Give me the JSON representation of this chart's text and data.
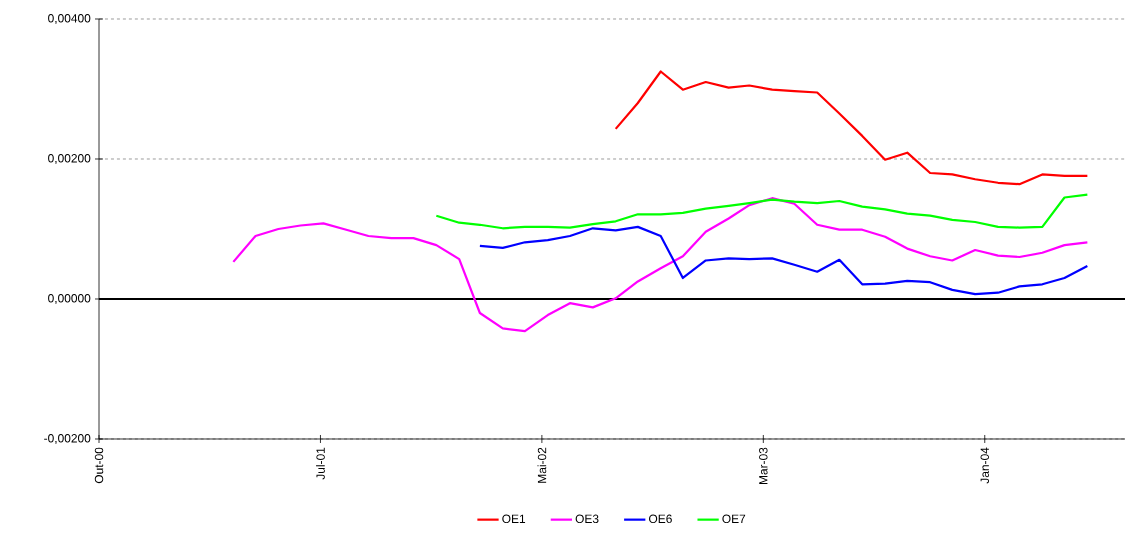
{
  "chart_data": {
    "type": "line",
    "x": [
      "2001-04",
      "2001-05",
      "2001-06",
      "2001-07",
      "2001-08",
      "2001-09",
      "2001-10",
      "2001-11",
      "2001-12",
      "2002-01",
      "2002-02",
      "2002-03",
      "2002-04",
      "2002-05",
      "2002-06",
      "2002-07",
      "2002-08",
      "2002-09",
      "2002-10",
      "2002-11",
      "2002-12",
      "2003-01",
      "2003-02",
      "2003-03",
      "2003-04",
      "2003-05",
      "2003-06",
      "2003-07",
      "2003-08",
      "2003-09",
      "2003-10",
      "2003-11",
      "2003-12",
      "2004-01",
      "2004-02",
      "2004-03",
      "2004-04",
      "2004-05",
      "2004-06"
    ],
    "series": [
      {
        "name": "OE1",
        "color": "#ff0000",
        "values": [
          null,
          null,
          null,
          null,
          null,
          null,
          null,
          null,
          null,
          null,
          null,
          null,
          null,
          null,
          null,
          null,
          null,
          0.00243,
          0.0028,
          0.00325,
          0.00299,
          0.0031,
          0.00302,
          0.00305,
          0.00299,
          0.00297,
          0.00295,
          0.00265,
          0.00233,
          0.00199,
          0.00209,
          0.0018,
          0.00178,
          0.00171,
          0.00166,
          0.00164,
          0.00178,
          0.00176,
          0.00176
        ]
      },
      {
        "name": "OE3",
        "color": "#ff00ff",
        "values": [
          0.00053,
          0.0009,
          0.001,
          0.00105,
          0.00108,
          0.00099,
          0.0009,
          0.00087,
          0.00087,
          0.00077,
          0.00057,
          -0.0002,
          -0.00042,
          -0.00046,
          -0.00023,
          -6e-05,
          -0.00012,
          1e-05,
          0.00025,
          0.00044,
          0.00061,
          0.00096,
          0.00115,
          0.00134,
          0.00144,
          0.00136,
          0.00106,
          0.00099,
          0.00099,
          0.00089,
          0.00072,
          0.00061,
          0.00055,
          0.0007,
          0.00062,
          0.0006,
          0.00066,
          0.00077,
          0.00081
        ]
      },
      {
        "name": "OE6",
        "color": "#0000ff",
        "values": [
          null,
          null,
          null,
          null,
          null,
          null,
          null,
          null,
          null,
          null,
          null,
          0.00076,
          0.00073,
          0.00081,
          0.00084,
          0.0009,
          0.00101,
          0.00098,
          0.00103,
          0.0009,
          0.0003,
          0.00055,
          0.00058,
          0.00057,
          0.00058,
          0.00049,
          0.00039,
          0.00056,
          0.00021,
          0.00022,
          0.00026,
          0.00024,
          0.00013,
          7e-05,
          9e-05,
          0.00018,
          0.00021,
          0.0003,
          0.00047
        ]
      },
      {
        "name": "OE7",
        "color": "#00ff00",
        "values": [
          null,
          null,
          null,
          null,
          null,
          null,
          null,
          null,
          null,
          0.00119,
          0.00109,
          0.00106,
          0.00101,
          0.00103,
          0.00103,
          0.00102,
          0.00107,
          0.00111,
          0.00121,
          0.00121,
          0.00123,
          0.00129,
          0.00133,
          0.00137,
          0.00142,
          0.00139,
          0.00137,
          0.0014,
          0.00132,
          0.00128,
          0.00122,
          0.00119,
          0.00113,
          0.0011,
          0.00103,
          0.00102,
          0.00103,
          0.00145,
          0.00149
        ]
      }
    ],
    "xlim": [
      "2000-10-01",
      "2004-07-22"
    ],
    "xticks": [
      {
        "value": "2000-10-01",
        "label": "Out-00"
      },
      {
        "value": "2001-07-28",
        "label": "Jul-01"
      },
      {
        "value": "2002-05-24",
        "label": "Mai-02"
      },
      {
        "value": "2003-03-20",
        "label": "Mar-03"
      },
      {
        "value": "2004-01-14",
        "label": "Jan-04"
      }
    ],
    "ylim": [
      -0.002,
      0.004
    ],
    "yticks": [
      {
        "value": -0.002,
        "label": "-0,00200"
      },
      {
        "value": 0,
        "label": "0,00000"
      },
      {
        "value": 0.002,
        "label": "0,00200"
      },
      {
        "value": 0.004,
        "label": "0,00400"
      }
    ],
    "ref_lines": [
      {
        "axis": "y",
        "value": 0,
        "color": "#000000"
      }
    ],
    "grid": "y",
    "legend": "bottom"
  }
}
